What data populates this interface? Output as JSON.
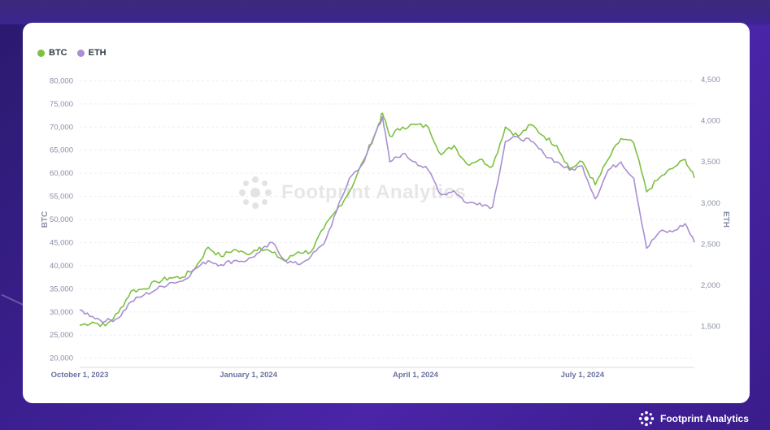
{
  "brand": {
    "name": "Footprint Analytics",
    "icon": "footprint-logo-icon"
  },
  "watermark": {
    "text": "Footprint Analytics",
    "icon": "footprint-logo-icon"
  },
  "chart_data": {
    "type": "line",
    "title": "",
    "xlabel": "",
    "ylabel": "BTC",
    "ylabel_right": "ETH",
    "x_ticks": [
      "October 1, 2023",
      "January 1, 2024",
      "April 1, 2024",
      "July 1, 2024"
    ],
    "y_left_ticks": [
      20000,
      25000,
      30000,
      35000,
      40000,
      45000,
      50000,
      55000,
      60000,
      65000,
      70000,
      75000,
      80000
    ],
    "y_left_tick_labels": [
      "20,000",
      "25,000",
      "30,000",
      "35,000",
      "40,000",
      "45,000",
      "50,000",
      "55,000",
      "60,000",
      "65,000",
      "70,000",
      "75,000",
      "80,000"
    ],
    "y_right_ticks": [
      1500,
      2000,
      2500,
      3000,
      3500,
      4000,
      4500
    ],
    "y_right_tick_labels": [
      "1,500",
      "2,000",
      "2,500",
      "3,000",
      "3,500",
      "4,000",
      "4,500"
    ],
    "ylim_left": [
      18000,
      82000
    ],
    "ylim_right": [
      1000,
      4600
    ],
    "xlim": [
      "2023-10-01",
      "2024-08-31"
    ],
    "grid": true,
    "legend": "top-left",
    "series": [
      {
        "name": "BTC",
        "axis": "left",
        "color": "#7dc142",
        "points": [
          [
            "2023-10-01",
            27100
          ],
          [
            "2023-10-08",
            27800
          ],
          [
            "2023-10-15",
            27000
          ],
          [
            "2023-10-22",
            29800
          ],
          [
            "2023-10-29",
            34500
          ],
          [
            "2023-11-05",
            35000
          ],
          [
            "2023-11-12",
            36500
          ],
          [
            "2023-11-19",
            37400
          ],
          [
            "2023-11-26",
            37500
          ],
          [
            "2023-12-03",
            39500
          ],
          [
            "2023-12-10",
            44000
          ],
          [
            "2023-12-17",
            42000
          ],
          [
            "2023-12-24",
            43500
          ],
          [
            "2023-12-31",
            42500
          ],
          [
            "2024-01-07",
            44000
          ],
          [
            "2024-01-14",
            42800
          ],
          [
            "2024-01-21",
            41000
          ],
          [
            "2024-01-28",
            43000
          ],
          [
            "2024-02-04",
            43000
          ],
          [
            "2024-02-11",
            48000
          ],
          [
            "2024-02-18",
            52000
          ],
          [
            "2024-02-25",
            56000
          ],
          [
            "2024-03-04",
            63000
          ],
          [
            "2024-03-11",
            69500
          ],
          [
            "2024-03-14",
            73000
          ],
          [
            "2024-03-18",
            68000
          ],
          [
            "2024-03-25",
            70000
          ],
          [
            "2024-04-01",
            70500
          ],
          [
            "2024-04-08",
            70000
          ],
          [
            "2024-04-15",
            64000
          ],
          [
            "2024-04-22",
            66000
          ],
          [
            "2024-04-29",
            62000
          ],
          [
            "2024-05-06",
            63000
          ],
          [
            "2024-05-13",
            61500
          ],
          [
            "2024-05-20",
            70000
          ],
          [
            "2024-05-27",
            68000
          ],
          [
            "2024-06-03",
            70500
          ],
          [
            "2024-06-10",
            68000
          ],
          [
            "2024-06-17",
            66000
          ],
          [
            "2024-06-24",
            61000
          ],
          [
            "2024-07-01",
            62500
          ],
          [
            "2024-07-08",
            57500
          ],
          [
            "2024-07-15",
            63000
          ],
          [
            "2024-07-22",
            67500
          ],
          [
            "2024-07-29",
            66500
          ],
          [
            "2024-08-05",
            56000
          ],
          [
            "2024-08-12",
            59000
          ],
          [
            "2024-08-19",
            61000
          ],
          [
            "2024-08-26",
            63000
          ],
          [
            "2024-08-31",
            59000
          ]
        ]
      },
      {
        "name": "ETH",
        "axis": "right",
        "color": "#a98fd1",
        "points": [
          [
            "2023-10-01",
            1700
          ],
          [
            "2023-10-08",
            1620
          ],
          [
            "2023-10-15",
            1560
          ],
          [
            "2023-10-22",
            1600
          ],
          [
            "2023-10-29",
            1800
          ],
          [
            "2023-11-05",
            1880
          ],
          [
            "2023-11-12",
            1950
          ],
          [
            "2023-11-19",
            2030
          ],
          [
            "2023-11-26",
            2050
          ],
          [
            "2023-12-03",
            2200
          ],
          [
            "2023-12-10",
            2300
          ],
          [
            "2023-12-17",
            2250
          ],
          [
            "2023-12-24",
            2300
          ],
          [
            "2023-12-31",
            2300
          ],
          [
            "2024-01-07",
            2400
          ],
          [
            "2024-01-14",
            2520
          ],
          [
            "2024-01-21",
            2300
          ],
          [
            "2024-01-28",
            2250
          ],
          [
            "2024-02-04",
            2350
          ],
          [
            "2024-02-11",
            2500
          ],
          [
            "2024-02-18",
            2900
          ],
          [
            "2024-02-25",
            3300
          ],
          [
            "2024-03-04",
            3500
          ],
          [
            "2024-03-11",
            3900
          ],
          [
            "2024-03-14",
            4050
          ],
          [
            "2024-03-18",
            3500
          ],
          [
            "2024-03-25",
            3600
          ],
          [
            "2024-04-01",
            3500
          ],
          [
            "2024-04-08",
            3400
          ],
          [
            "2024-04-15",
            3100
          ],
          [
            "2024-04-22",
            3150
          ],
          [
            "2024-04-29",
            3000
          ],
          [
            "2024-05-06",
            3000
          ],
          [
            "2024-05-13",
            2950
          ],
          [
            "2024-05-20",
            3750
          ],
          [
            "2024-05-27",
            3800
          ],
          [
            "2024-06-03",
            3750
          ],
          [
            "2024-06-10",
            3600
          ],
          [
            "2024-06-17",
            3500
          ],
          [
            "2024-06-24",
            3400
          ],
          [
            "2024-07-01",
            3450
          ],
          [
            "2024-07-08",
            3050
          ],
          [
            "2024-07-15",
            3400
          ],
          [
            "2024-07-22",
            3500
          ],
          [
            "2024-07-29",
            3300
          ],
          [
            "2024-08-05",
            2450
          ],
          [
            "2024-08-12",
            2650
          ],
          [
            "2024-08-19",
            2650
          ],
          [
            "2024-08-26",
            2750
          ],
          [
            "2024-08-31",
            2520
          ]
        ]
      }
    ]
  }
}
